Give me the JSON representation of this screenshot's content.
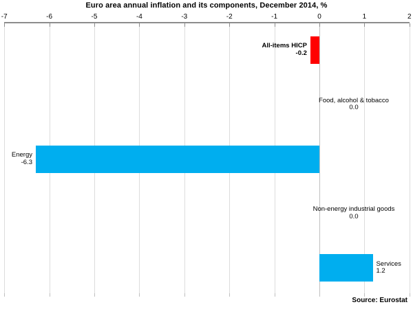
{
  "chart_data": {
    "type": "bar",
    "orientation": "horizontal",
    "title": "Euro area annual inflation and its components, December 2014, %",
    "categories": [
      "All-items HICP",
      "Food, alcohol & tobacco",
      "Energy",
      "Non-energy industrial goods",
      "Services"
    ],
    "values": [
      -0.2,
      0.0,
      -6.3,
      0.0,
      1.2
    ],
    "value_labels": [
      "-0.2",
      "0.0",
      "-6.3",
      "0.0",
      "1.2"
    ],
    "bar_colors": [
      "#ff0000",
      null,
      "#00aeef",
      null,
      "#00aeef"
    ],
    "emphasized_category_index": 0,
    "xlim": [
      -7,
      2
    ],
    "x_ticks": [
      -7,
      -6,
      -5,
      -4,
      -3,
      -2,
      -1,
      0,
      1,
      2
    ],
    "axis_position": "top",
    "grid": true,
    "legend": "none",
    "source": "Source: Eurostat",
    "colors": {
      "hicp_bar": "#ff0000",
      "component_bar": "#00aeef",
      "gridline": "#dcdcdc",
      "zero_line": "#c0c0c0",
      "axis_line": "#8c8c8c",
      "bottom_tick": "#bfbfbf"
    }
  }
}
